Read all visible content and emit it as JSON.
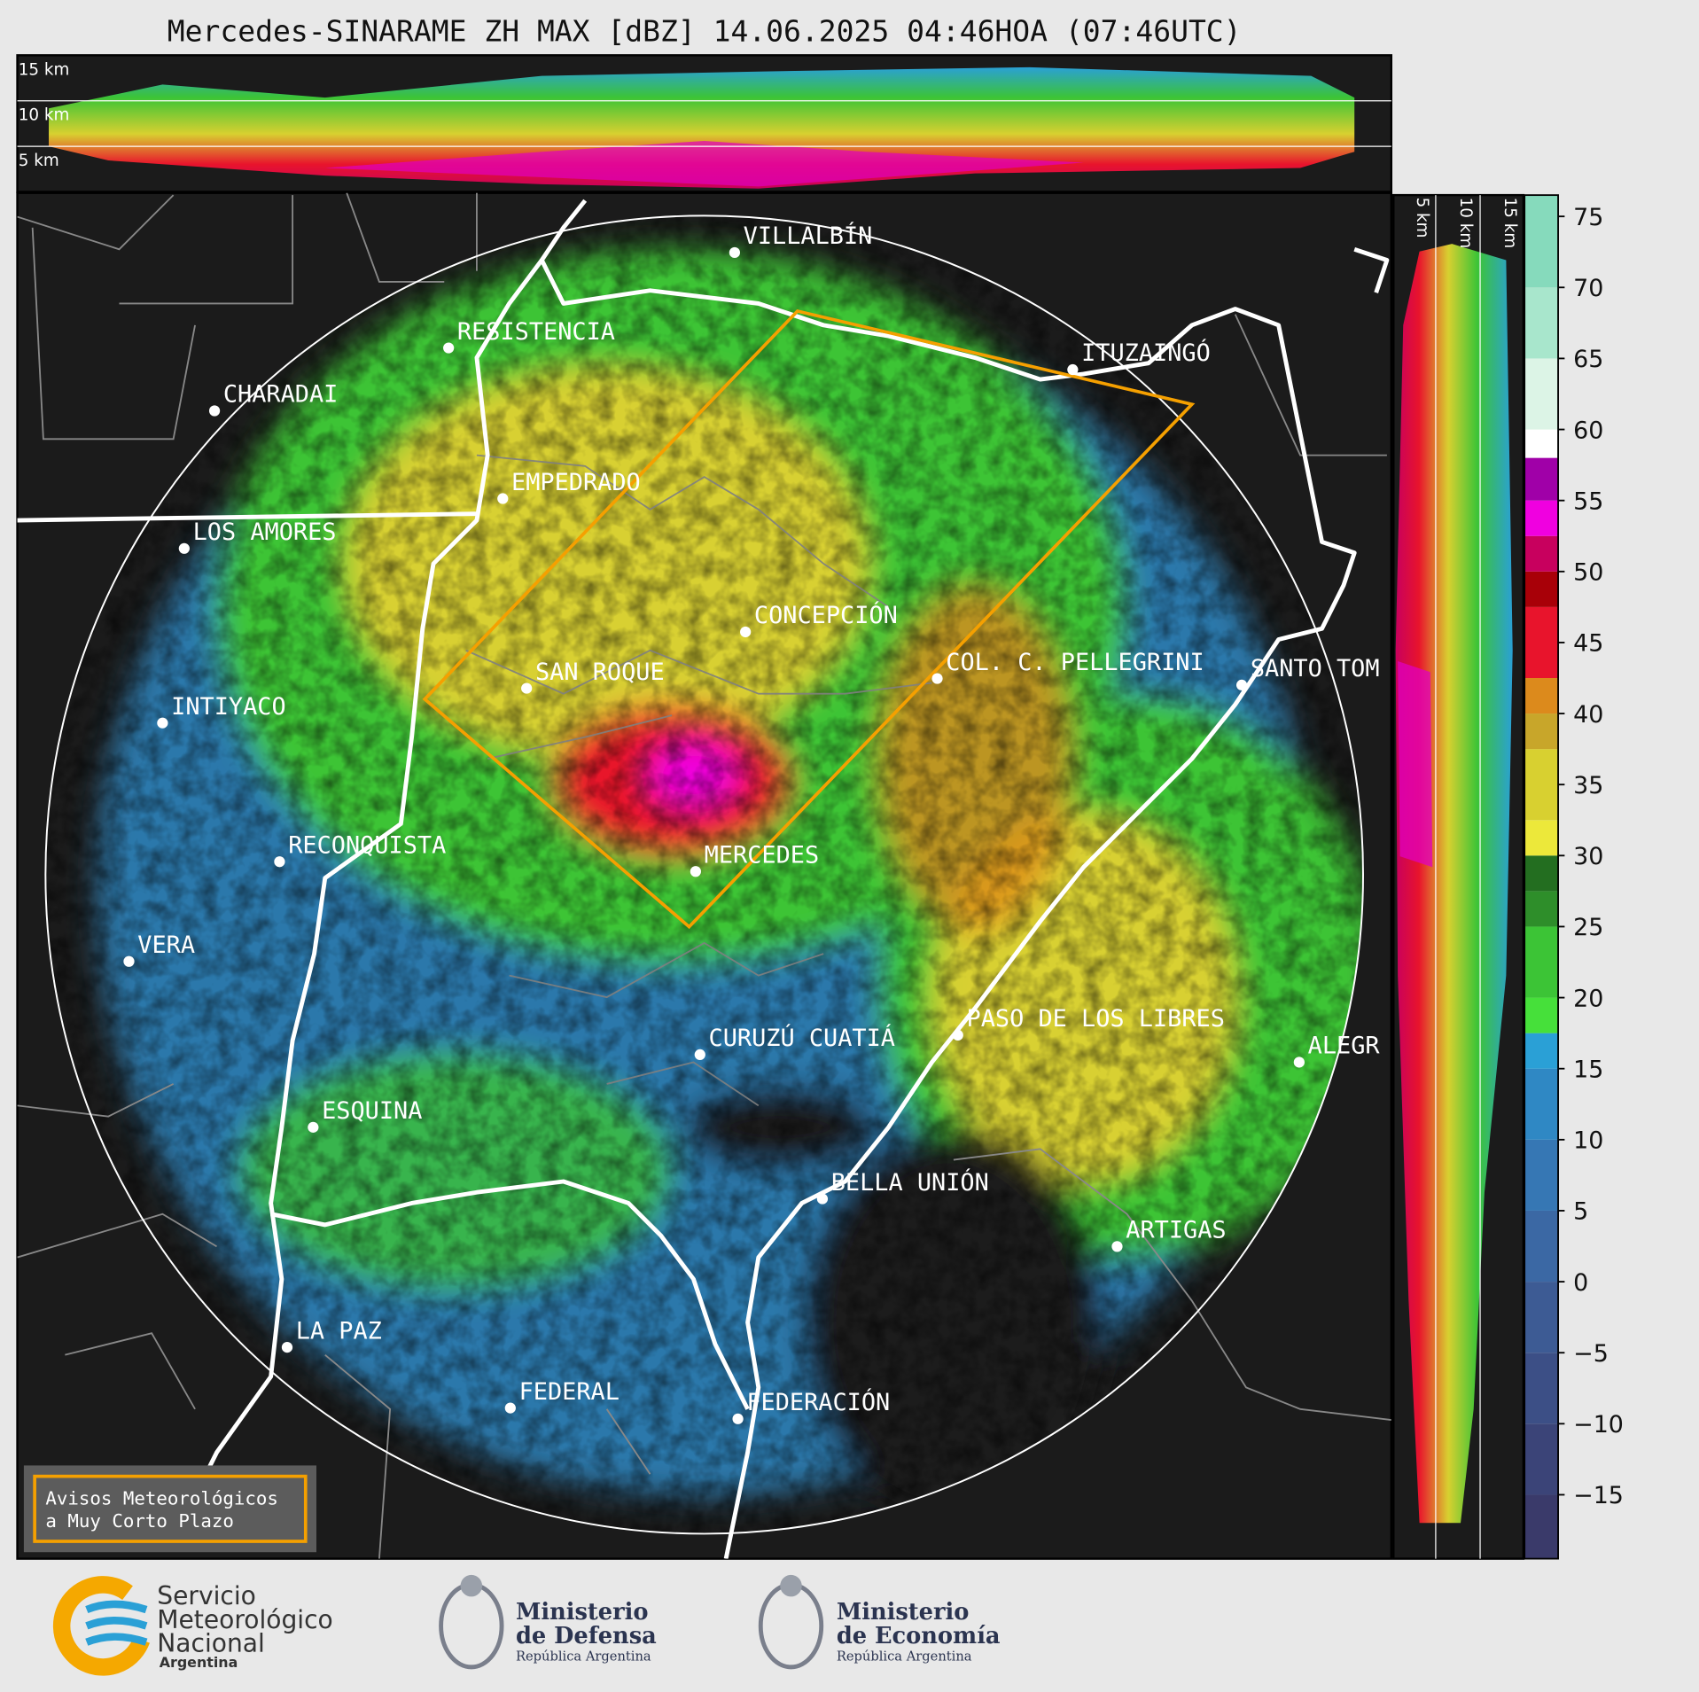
{
  "title": "Mercedes-SINARAME ZH MAX [dBZ] 14.06.2025 04:46HOA (07:46UTC)",
  "top_panel": {
    "labels": [
      "15 km",
      "10 km",
      "5 km"
    ]
  },
  "side_panel": {
    "labels": [
      "5 km",
      "10 km",
      "15 km"
    ]
  },
  "cities": [
    "VILLALBÍN",
    "RESISTENCIA",
    "CHARADAI",
    "ITUZAINGÓ",
    "EMPEDRADO",
    "LOS AMORES",
    "CONCEPCIÓN",
    "SAN ROQUE",
    "COL. C. PELLEGRINI",
    "SANTO TOM",
    "INTIYACO",
    "RECONQUISTA",
    "MERCEDES",
    "VERA",
    "PASO DE LOS LIBRES",
    "CURUZÚ CUATIÁ",
    "ALEGR",
    "ESQUINA",
    "BELLA UNIÓN",
    "ARTIGAS",
    "LA PAZ",
    "FEDERAL",
    "FEDERACIÓN"
  ],
  "legend": {
    "lines": [
      "Avisos Meteorológicos",
      "a Muy Corto Plazo"
    ]
  },
  "colorbar": {
    "lim": [
      -19.5,
      76.5
    ],
    "ticks": [
      75,
      70,
      65,
      60,
      55,
      50,
      45,
      40,
      35,
      30,
      25,
      20,
      15,
      10,
      5,
      0,
      {
        "value": -5,
        "label": "−5"
      },
      {
        "value": -10,
        "label": "−10"
      },
      {
        "value": -15,
        "label": "−15"
      }
    ],
    "stops": [
      {
        "from": -19.5,
        "color": "#3a3a6a"
      },
      {
        "from": -15,
        "color": "#3b4478"
      },
      {
        "from": -10,
        "color": "#3c4f86"
      },
      {
        "from": -5,
        "color": "#3d5b94"
      },
      {
        "from": 0,
        "color": "#3b68a4"
      },
      {
        "from": 5,
        "color": "#3677b4"
      },
      {
        "from": 10,
        "color": "#2f88c4"
      },
      {
        "from": 15,
        "color": "#2aa0d6"
      },
      {
        "from": 17.5,
        "color": "#46e03a"
      },
      {
        "from": 20,
        "color": "#3cc436"
      },
      {
        "from": 25,
        "color": "#2e8e2a"
      },
      {
        "from": 27.5,
        "color": "#236e20"
      },
      {
        "from": 30,
        "color": "#ece83a"
      },
      {
        "from": 32.5,
        "color": "#d8d030"
      },
      {
        "from": 37.5,
        "color": "#c8a62a"
      },
      {
        "from": 40,
        "color": "#dc8a1c"
      },
      {
        "from": 42.5,
        "color": "#e8142c"
      },
      {
        "from": 47.5,
        "color": "#a80008"
      },
      {
        "from": 50,
        "color": "#c8005e"
      },
      {
        "from": 52.5,
        "color": "#f000e0"
      },
      {
        "from": 55,
        "color": "#a000a8"
      },
      {
        "from": 58,
        "color": "#ffffff"
      },
      {
        "from": 60,
        "color": "#dcf4e6"
      },
      {
        "from": 65,
        "color": "#a8e6cc"
      },
      {
        "from": 70,
        "color": "#86dabc"
      }
    ]
  },
  "logos": {
    "smn": [
      "Servicio",
      "Meteorológico",
      "Nacional",
      "Argentina"
    ],
    "defensa": [
      "Ministerio",
      "de Defensa",
      "República Argentina"
    ],
    "economia": [
      "Ministerio",
      "de Economía",
      "República Argentina"
    ]
  }
}
